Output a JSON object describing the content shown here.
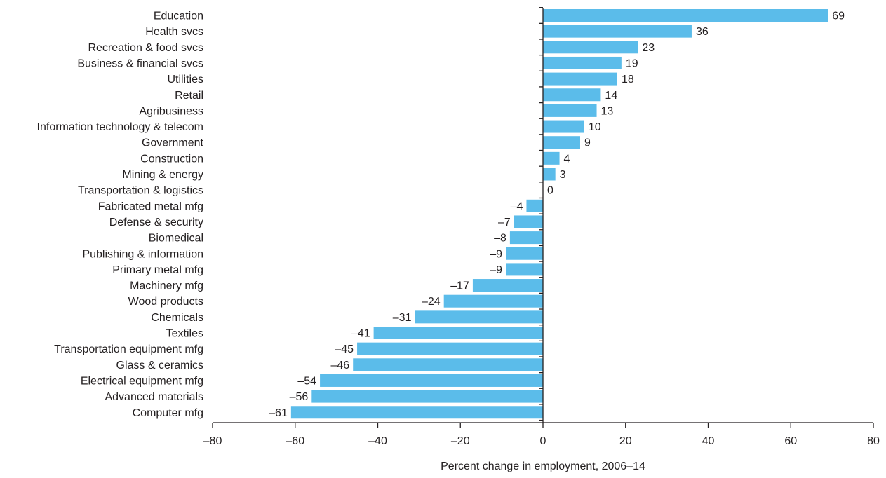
{
  "chart_data": {
    "type": "bar",
    "orientation": "horizontal",
    "categories": [
      "Education",
      "Health svcs",
      "Recreation & food svcs",
      "Business & financial svcs",
      "Utilities",
      "Retail",
      "Agribusiness",
      "Information technology & telecom",
      "Government",
      "Construction",
      "Mining & energy",
      "Transportation & logistics",
      "Fabricated metal mfg",
      "Defense & security",
      "Biomedical",
      "Publishing & information",
      "Primary metal mfg",
      "Machinery mfg",
      "Wood products",
      "Chemicals",
      "Textiles",
      "Transportation equipment mfg",
      "Glass & ceramics",
      "Electrical equipment mfg",
      "Advanced materials",
      "Computer mfg"
    ],
    "values": [
      69,
      36,
      23,
      19,
      18,
      14,
      13,
      10,
      9,
      4,
      3,
      0,
      -4,
      -7,
      -8,
      -9,
      -9,
      -17,
      -24,
      -31,
      -41,
      -45,
      -46,
      -54,
      -56,
      -61
    ],
    "value_labels": [
      "69",
      "36",
      "23",
      "19",
      "18",
      "14",
      "13",
      "10",
      "9",
      "4",
      "3",
      "0",
      "–4",
      "–7",
      "–8",
      "–9",
      "–9",
      "–17",
      "–24",
      "–31",
      "–41",
      "–45",
      "–46",
      "–54",
      "–56",
      "–61"
    ],
    "xlabel": "Percent change in employment, 2006–14",
    "xlim": [
      -80,
      80
    ],
    "xticks": [
      -80,
      -60,
      -40,
      -20,
      0,
      20,
      40,
      60,
      80
    ],
    "xtick_labels": [
      "–80",
      "–60",
      "–40",
      "–20",
      "0",
      "20",
      "40",
      "60",
      "80"
    ],
    "bar_color": "#5bbcea",
    "axis_color": "#231f20",
    "grid": false,
    "legend": "none"
  }
}
